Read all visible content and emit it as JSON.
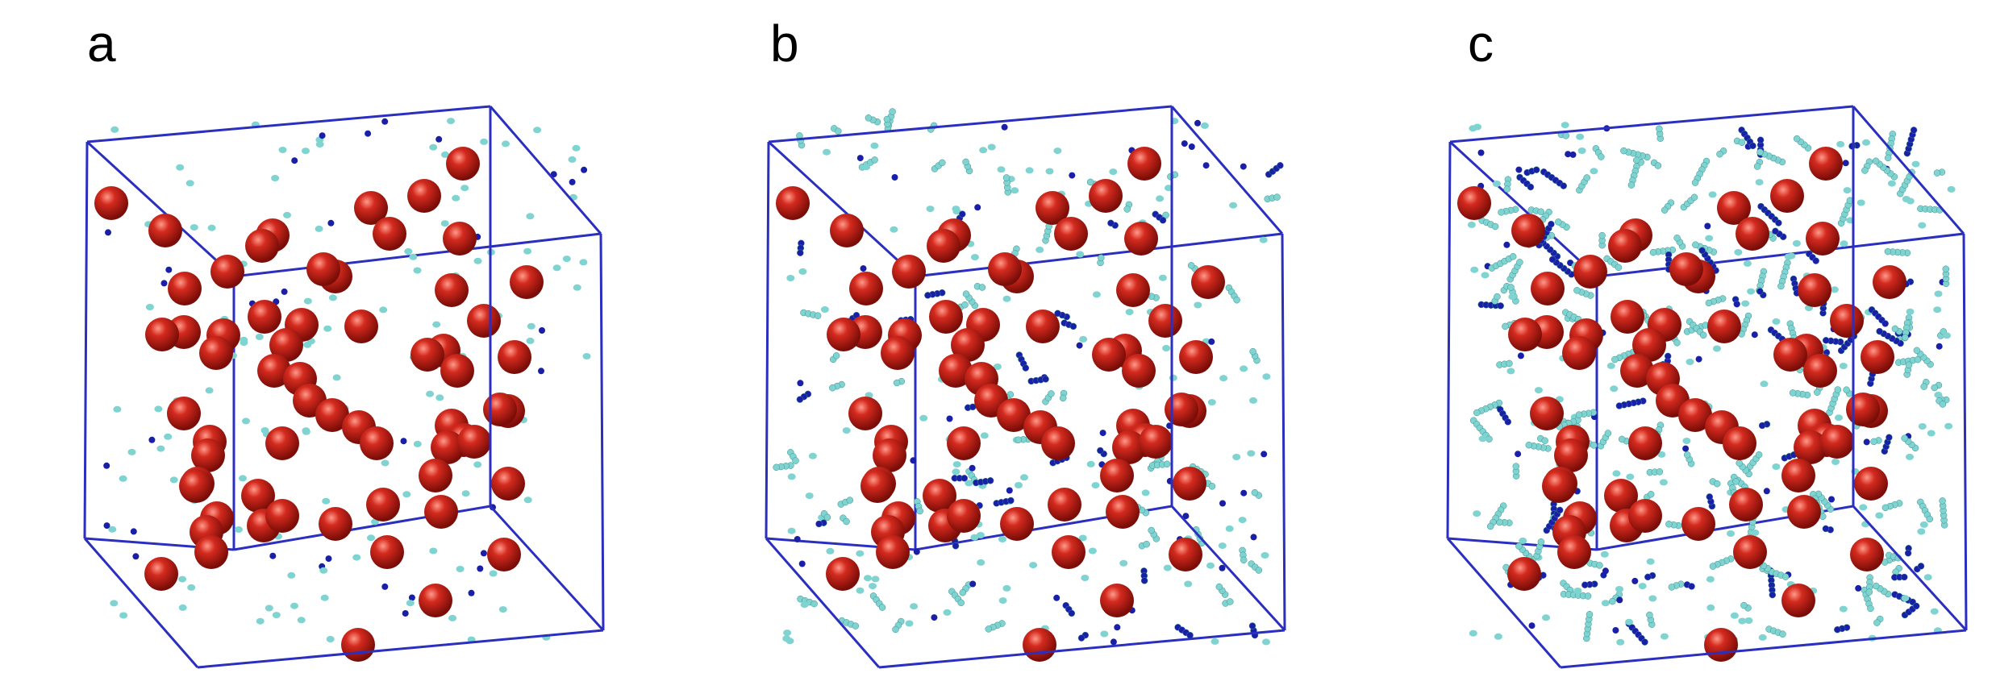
{
  "figure": {
    "panels": [
      {
        "label": "a",
        "atom_colors": {
          "cation": "#d42a1e",
          "anion_small": "#7fd3d0",
          "anion_dark": "#1a1fa8"
        },
        "cluster_level": "low"
      },
      {
        "label": "b",
        "atom_colors": {
          "cation": "#d42a1e",
          "anion_small": "#7fd3d0",
          "anion_dark": "#1a1fa8"
        },
        "cluster_level": "medium"
      },
      {
        "label": "c",
        "atom_colors": {
          "cation": "#d42a1e",
          "anion_small": "#7fd3d0",
          "anion_dark": "#1a1fa8"
        },
        "cluster_level": "high"
      }
    ],
    "box_color": "#2b2fc0"
  }
}
